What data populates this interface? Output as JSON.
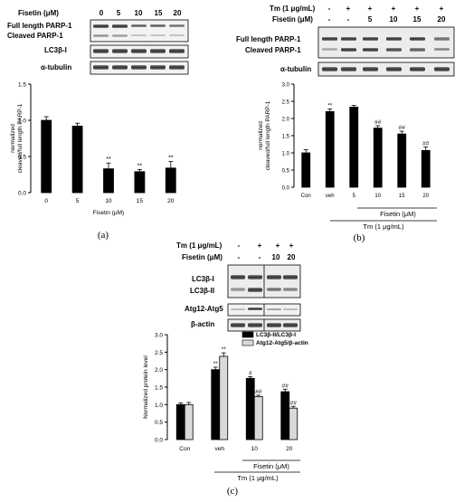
{
  "panel_a": {
    "caption": "(a)",
    "blot": {
      "header_label": "Fisetin (μM)",
      "doses": [
        "0",
        "5",
        "10",
        "15",
        "20"
      ],
      "rows": [
        "Full length PARP-1",
        "Cleaved PARP-1",
        "LC3β-I",
        "α-tubulin"
      ]
    }
  },
  "panel_b": {
    "caption": "(b)",
    "blot": {
      "tm_label": "Tm (1 μg/mL)",
      "fisetin_label": "Fisetin (μM)",
      "tm_row": [
        "-",
        "+",
        "+",
        "+",
        "+",
        "+"
      ],
      "fisetin_row": [
        "-",
        "-",
        "5",
        "10",
        "15",
        "20"
      ],
      "rows": [
        "Full length PARP-1",
        "Cleaved PARP-1",
        "α-tubulin"
      ]
    },
    "bracket_fisetin": "Fisetin (μM)",
    "bracket_tm": "Tm (1 μg/mL)"
  },
  "panel_c": {
    "caption": "(c)",
    "blot": {
      "tm_label": "Tm (1 μg/mL)",
      "fisetin_label": "Fisetin (μM)",
      "tm_row": [
        "-",
        "+",
        "+",
        "+"
      ],
      "fisetin_row": [
        "-",
        "-",
        "10",
        "20"
      ],
      "rows": [
        "LC3β-I",
        "LC3β-II",
        "Atg12-Atg5",
        "β-actin"
      ]
    },
    "bracket_fisetin": "Fisetin (μM)",
    "bracket_tm": "Tm (1 μg/mL)"
  },
  "chart_data": [
    {
      "type": "bar",
      "panel": "a",
      "categories": [
        "0",
        "5",
        "10",
        "15",
        "20"
      ],
      "values": [
        1.0,
        0.92,
        0.33,
        0.29,
        0.34
      ],
      "errors": [
        0.05,
        0.04,
        0.08,
        0.03,
        0.09
      ],
      "annotations": [
        "",
        "",
        "**",
        "**",
        "**"
      ],
      "xlabel": "Fisetin (μM)",
      "ylabel": "normalized cleaved/full length PARP-1",
      "ylim": [
        0,
        1.5
      ],
      "yticks": [
        "0.0",
        "0.5",
        "1.0",
        "1.5"
      ],
      "color": "#000000"
    },
    {
      "type": "bar",
      "panel": "b",
      "categories": [
        "Con",
        "veh",
        "5",
        "10",
        "15",
        "20"
      ],
      "values": [
        1.0,
        2.2,
        2.33,
        1.72,
        1.55,
        1.07
      ],
      "errors": [
        0.09,
        0.08,
        0.05,
        0.07,
        0.08,
        0.1
      ],
      "annotations": [
        "",
        "**",
        "",
        "##",
        "##",
        "##"
      ],
      "ylabel": "normalized cleaved/full length PARP-1",
      "ylim": [
        0,
        3.0
      ],
      "yticks": [
        "0.0",
        "0.5",
        "1.0",
        "1.5",
        "2.0",
        "2.5",
        "3.0"
      ],
      "color": "#000000"
    },
    {
      "type": "bar",
      "panel": "c",
      "categories": [
        "Con",
        "veh",
        "10",
        "20"
      ],
      "ylabel": "Normalized protein level",
      "ylim": [
        0,
        3.0
      ],
      "yticks": [
        "0.0",
        "0.5",
        "1.0",
        "1.5",
        "2.0",
        "2.5",
        "3.0"
      ],
      "legend_position": "top-right",
      "series": [
        {
          "name": "LC3β-II/LC3β-I",
          "color": "#000000",
          "values": [
            1.0,
            2.0,
            1.75,
            1.37
          ],
          "errors": [
            0.05,
            0.07,
            0.05,
            0.07
          ],
          "annotations": [
            "",
            "**",
            "#",
            "##"
          ]
        },
        {
          "name": "Atg12-Atg5/β-actin",
          "color": "#d9d9d9",
          "values": [
            1.0,
            2.38,
            1.23,
            0.9
          ],
          "errors": [
            0.06,
            0.1,
            0.04,
            0.05
          ],
          "annotations": [
            "",
            "**",
            "##",
            "##"
          ]
        }
      ]
    }
  ]
}
